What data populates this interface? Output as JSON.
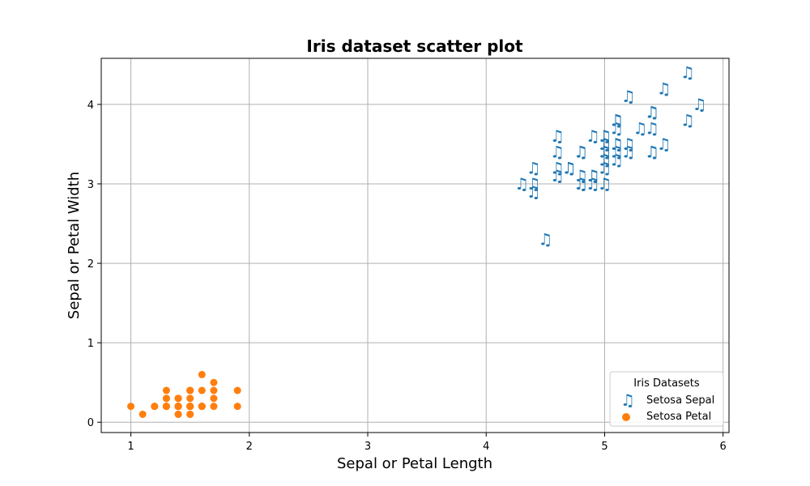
{
  "chart_data": {
    "type": "scatter",
    "title": "Iris dataset scatter plot",
    "xlabel": "Sepal or Petal Length",
    "ylabel": "Sepal or Petal Width",
    "xlim": [
      0.75,
      6.05
    ],
    "ylim": [
      -0.13,
      4.58
    ],
    "xticks": [
      1,
      2,
      3,
      4,
      5,
      6
    ],
    "yticks": [
      0,
      1,
      2,
      3,
      4
    ],
    "grid": true,
    "legend": {
      "title": "Iris Datasets",
      "position": "bottom-right"
    },
    "series": [
      {
        "name": "Setosa Sepal",
        "marker": "music-note",
        "color": "#1f77b4",
        "points": [
          [
            5.1,
            3.5
          ],
          [
            4.9,
            3.0
          ],
          [
            4.7,
            3.2
          ],
          [
            4.6,
            3.1
          ],
          [
            5.0,
            3.6
          ],
          [
            5.4,
            3.9
          ],
          [
            4.6,
            3.4
          ],
          [
            5.0,
            3.4
          ],
          [
            4.4,
            2.9
          ],
          [
            4.9,
            3.1
          ],
          [
            5.4,
            3.7
          ],
          [
            4.8,
            3.4
          ],
          [
            4.8,
            3.0
          ],
          [
            4.3,
            3.0
          ],
          [
            5.8,
            4.0
          ],
          [
            5.7,
            4.4
          ],
          [
            5.4,
            3.9
          ],
          [
            5.1,
            3.5
          ],
          [
            5.7,
            3.8
          ],
          [
            5.1,
            3.8
          ],
          [
            5.4,
            3.4
          ],
          [
            5.1,
            3.7
          ],
          [
            4.6,
            3.6
          ],
          [
            5.1,
            3.3
          ],
          [
            4.8,
            3.4
          ],
          [
            5.0,
            3.0
          ],
          [
            5.0,
            3.4
          ],
          [
            5.2,
            3.5
          ],
          [
            5.2,
            3.4
          ],
          [
            4.7,
            3.2
          ],
          [
            4.8,
            3.1
          ],
          [
            5.4,
            3.4
          ],
          [
            5.2,
            4.1
          ],
          [
            5.5,
            4.2
          ],
          [
            4.9,
            3.1
          ],
          [
            5.0,
            3.2
          ],
          [
            5.5,
            3.5
          ],
          [
            4.9,
            3.6
          ],
          [
            4.4,
            3.0
          ],
          [
            5.1,
            3.4
          ],
          [
            5.0,
            3.5
          ],
          [
            4.5,
            2.3
          ],
          [
            4.4,
            3.2
          ],
          [
            5.0,
            3.5
          ],
          [
            5.1,
            3.8
          ],
          [
            4.8,
            3.0
          ],
          [
            5.1,
            3.8
          ],
          [
            4.6,
            3.2
          ],
          [
            5.3,
            3.7
          ],
          [
            5.0,
            3.3
          ]
        ]
      },
      {
        "name": "Setosa Petal",
        "marker": "circle",
        "color": "#ff7f0e",
        "points": [
          [
            1.4,
            0.2
          ],
          [
            1.4,
            0.2
          ],
          [
            1.3,
            0.2
          ],
          [
            1.5,
            0.2
          ],
          [
            1.4,
            0.2
          ],
          [
            1.7,
            0.4
          ],
          [
            1.4,
            0.3
          ],
          [
            1.5,
            0.2
          ],
          [
            1.4,
            0.2
          ],
          [
            1.5,
            0.1
          ],
          [
            1.5,
            0.2
          ],
          [
            1.6,
            0.2
          ],
          [
            1.4,
            0.1
          ],
          [
            1.1,
            0.1
          ],
          [
            1.2,
            0.2
          ],
          [
            1.5,
            0.4
          ],
          [
            1.3,
            0.4
          ],
          [
            1.4,
            0.3
          ],
          [
            1.7,
            0.3
          ],
          [
            1.5,
            0.3
          ],
          [
            1.7,
            0.2
          ],
          [
            1.5,
            0.4
          ],
          [
            1.0,
            0.2
          ],
          [
            1.7,
            0.5
          ],
          [
            1.9,
            0.2
          ],
          [
            1.6,
            0.2
          ],
          [
            1.6,
            0.4
          ],
          [
            1.5,
            0.2
          ],
          [
            1.4,
            0.2
          ],
          [
            1.6,
            0.2
          ],
          [
            1.6,
            0.2
          ],
          [
            1.5,
            0.4
          ],
          [
            1.5,
            0.1
          ],
          [
            1.4,
            0.2
          ],
          [
            1.5,
            0.2
          ],
          [
            1.2,
            0.2
          ],
          [
            1.3,
            0.2
          ],
          [
            1.4,
            0.1
          ],
          [
            1.3,
            0.2
          ],
          [
            1.5,
            0.2
          ],
          [
            1.3,
            0.3
          ],
          [
            1.3,
            0.3
          ],
          [
            1.3,
            0.2
          ],
          [
            1.6,
            0.6
          ],
          [
            1.9,
            0.4
          ],
          [
            1.4,
            0.3
          ],
          [
            1.6,
            0.2
          ],
          [
            1.4,
            0.2
          ],
          [
            1.5,
            0.2
          ],
          [
            1.4,
            0.2
          ]
        ]
      }
    ]
  }
}
